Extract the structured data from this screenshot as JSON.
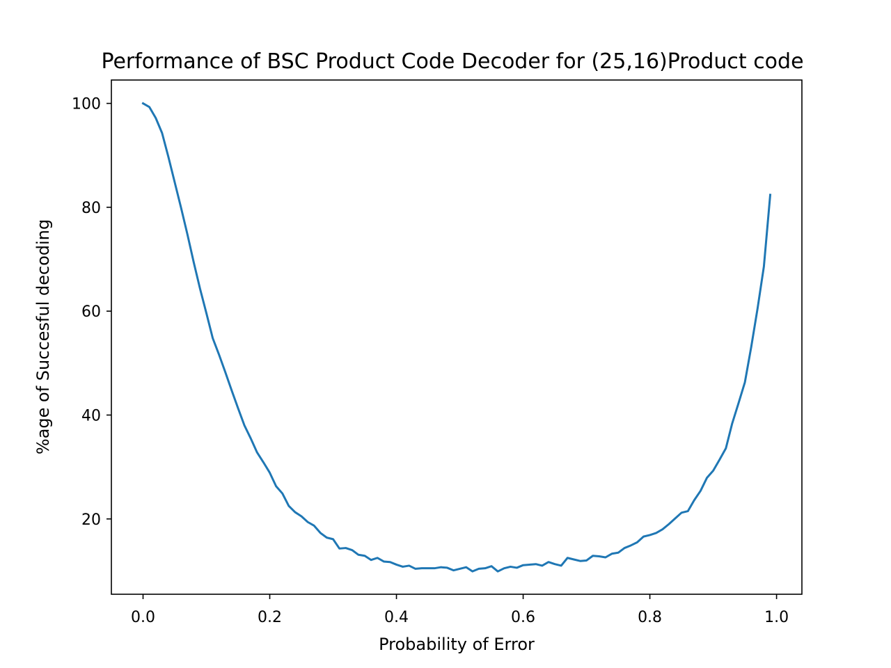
{
  "chart_data": {
    "type": "line",
    "title": "Performance of BSC Product Code Decoder for (25,16)Product code",
    "xlabel": "Probability of Error",
    "ylabel": "%age of Succesful decoding",
    "xlim": [
      -0.05,
      1.04
    ],
    "ylim": [
      5.5,
      104.5
    ],
    "xticks": [
      0.0,
      0.2,
      0.4,
      0.6,
      0.8,
      1.0
    ],
    "xtick_labels": [
      "0.0",
      "0.2",
      "0.4",
      "0.6",
      "0.8",
      "1.0"
    ],
    "yticks": [
      20,
      40,
      60,
      80,
      100
    ],
    "ytick_labels": [
      "20",
      "40",
      "60",
      "80",
      "100"
    ],
    "grid": false,
    "series": [
      {
        "color": "#1f77b4",
        "x": [
          0.0,
          0.01,
          0.02,
          0.03,
          0.04,
          0.05,
          0.06,
          0.07,
          0.08,
          0.09,
          0.1,
          0.11,
          0.12,
          0.13,
          0.14,
          0.15,
          0.16,
          0.17,
          0.18,
          0.19,
          0.2,
          0.21,
          0.22,
          0.23,
          0.24,
          0.25,
          0.26,
          0.27,
          0.28,
          0.29,
          0.3,
          0.31,
          0.32,
          0.33,
          0.34,
          0.35,
          0.36,
          0.37,
          0.38,
          0.39,
          0.4,
          0.41,
          0.42,
          0.43,
          0.44,
          0.45,
          0.46,
          0.47,
          0.48,
          0.49,
          0.5,
          0.51,
          0.52,
          0.53,
          0.54,
          0.55,
          0.56,
          0.57,
          0.58,
          0.59,
          0.6,
          0.61,
          0.62,
          0.63,
          0.64,
          0.65,
          0.66,
          0.67,
          0.68,
          0.69,
          0.7,
          0.71,
          0.72,
          0.73,
          0.74,
          0.75,
          0.76,
          0.77,
          0.78,
          0.79,
          0.8,
          0.81,
          0.82,
          0.83,
          0.84,
          0.85,
          0.86,
          0.87,
          0.88,
          0.89,
          0.9,
          0.91,
          0.92,
          0.93,
          0.94,
          0.95,
          0.96,
          0.97,
          0.98,
          0.99
        ],
        "y": [
          100.0,
          99.3,
          97.2,
          94.3,
          89.7,
          84.8,
          79.9,
          74.8,
          69.4,
          64.3,
          59.6,
          54.8,
          51.6,
          48.2,
          44.7,
          41.3,
          38.0,
          35.5,
          32.8,
          30.9,
          28.9,
          26.3,
          24.9,
          22.5,
          21.3,
          20.5,
          19.4,
          18.7,
          17.3,
          16.4,
          16.1,
          14.3,
          14.4,
          14.0,
          13.1,
          12.9,
          12.1,
          12.5,
          11.8,
          11.7,
          11.2,
          10.8,
          11.0,
          10.4,
          10.5,
          10.5,
          10.5,
          10.7,
          10.6,
          10.1,
          10.4,
          10.7,
          9.9,
          10.4,
          10.5,
          10.9,
          9.9,
          10.5,
          10.8,
          10.6,
          11.1,
          11.2,
          11.3,
          11.0,
          11.7,
          11.3,
          11.0,
          12.5,
          12.2,
          11.9,
          12.0,
          12.9,
          12.8,
          12.6,
          13.3,
          13.5,
          14.4,
          14.9,
          15.5,
          16.6,
          16.9,
          17.3,
          18.0,
          19.0,
          20.1,
          21.2,
          21.5,
          23.6,
          25.4,
          27.9,
          29.3,
          31.4,
          33.6,
          38.4,
          42.3,
          46.3,
          53.1,
          60.5,
          68.6,
          82.4
        ]
      }
    ]
  }
}
